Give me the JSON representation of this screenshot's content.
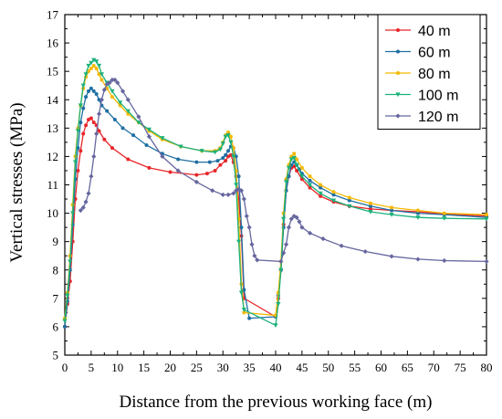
{
  "chart_data": {
    "type": "line",
    "xlabel": "Distance from the previous working face (m)",
    "ylabel": "Vertical stresses (MPa)",
    "xlim": [
      0,
      80
    ],
    "ylim": [
      5,
      17
    ],
    "xticks": [
      0,
      5,
      10,
      15,
      20,
      25,
      30,
      35,
      40,
      45,
      50,
      55,
      60,
      65,
      70,
      75,
      80
    ],
    "yticks": [
      5,
      6,
      7,
      8,
      9,
      10,
      11,
      12,
      13,
      14,
      15,
      16,
      17
    ],
    "grid": false,
    "legend_position": "top-right",
    "series": [
      {
        "name": "40 m",
        "color": "#e8262a",
        "marker": "circle",
        "x": [
          0,
          0.5,
          1,
          1.5,
          2,
          2.5,
          3,
          3.5,
          4,
          4.5,
          5,
          5.5,
          6,
          6.5,
          7.5,
          9,
          12,
          16,
          20,
          25,
          27,
          28.5,
          29.5,
          30.5,
          31,
          31.5,
          32,
          32.5,
          33,
          33.5,
          34,
          40,
          40.5,
          41,
          41.5,
          42,
          42.5,
          43,
          43.5,
          44,
          45,
          46.5,
          48.5,
          51,
          54,
          58,
          62,
          67,
          72,
          80
        ],
        "y": [
          6.0,
          6.8,
          7.6,
          9.0,
          10.5,
          11.5,
          12.2,
          12.8,
          13.1,
          13.3,
          13.35,
          13.2,
          13.1,
          12.9,
          12.6,
          12.3,
          11.9,
          11.6,
          11.45,
          11.35,
          11.4,
          11.5,
          11.7,
          11.85,
          12.0,
          12.05,
          11.8,
          11.3,
          10.5,
          9.2,
          7.0,
          6.35,
          7.0,
          8.0,
          9.6,
          10.8,
          11.3,
          11.6,
          11.65,
          11.5,
          11.2,
          10.9,
          10.6,
          10.4,
          10.25,
          10.15,
          10.1,
          10.05,
          9.98,
          9.9
        ]
      },
      {
        "name": "60 m",
        "color": "#1f6fa3",
        "marker": "circle",
        "x": [
          0,
          0.5,
          1,
          1.5,
          2,
          2.5,
          3,
          3.5,
          4,
          4.5,
          5,
          5.5,
          6,
          6.5,
          7,
          8,
          9.5,
          11,
          13,
          15.5,
          18.5,
          21.5,
          25,
          27.5,
          29,
          30,
          30.5,
          31,
          31.5,
          32,
          32.5,
          33,
          33.5,
          34,
          35,
          40,
          40.5,
          41,
          41.5,
          42,
          42.5,
          43,
          43.5,
          44,
          44.5,
          45,
          46.5,
          48.5,
          51,
          54,
          58,
          62,
          67,
          72,
          80
        ],
        "y": [
          6.0,
          6.9,
          8.0,
          9.6,
          11.2,
          12.3,
          13.2,
          13.7,
          14.1,
          14.3,
          14.4,
          14.3,
          14.2,
          14.0,
          13.8,
          13.6,
          13.3,
          13.0,
          12.75,
          12.4,
          12.1,
          11.9,
          11.8,
          11.8,
          11.85,
          11.95,
          12.05,
          12.2,
          12.35,
          12.3,
          12.0,
          11.3,
          9.5,
          7.3,
          6.3,
          6.35,
          7.1,
          8.0,
          9.5,
          10.8,
          11.3,
          11.7,
          11.8,
          11.7,
          11.55,
          11.4,
          11.15,
          10.9,
          10.65,
          10.45,
          10.25,
          10.1,
          10.0,
          9.95,
          9.85
        ]
      },
      {
        "name": "80 m",
        "color": "#f5b800",
        "marker": "circle",
        "x": [
          0,
          0.5,
          1,
          1.5,
          2,
          2.5,
          3,
          3.5,
          4,
          4.5,
          5,
          5.5,
          6,
          6.5,
          7,
          8,
          9,
          10.5,
          12,
          14,
          16,
          18.5,
          22,
          26,
          28.5,
          29.5,
          30,
          30.5,
          31,
          31.5,
          32,
          32.5,
          33,
          33.5,
          34,
          40,
          40.5,
          41,
          41.5,
          42,
          42.5,
          43,
          43.5,
          44,
          45,
          46.5,
          48.5,
          51,
          54,
          58,
          62,
          67,
          72,
          80
        ],
        "y": [
          6.3,
          7.2,
          8.5,
          10.3,
          12.0,
          13.0,
          13.8,
          14.4,
          14.8,
          15.0,
          15.1,
          15.2,
          15.1,
          14.9,
          14.7,
          14.4,
          14.1,
          13.8,
          13.5,
          13.2,
          12.9,
          12.6,
          12.35,
          12.2,
          12.2,
          12.3,
          12.5,
          12.75,
          12.85,
          12.7,
          12.3,
          11.5,
          9.8,
          7.5,
          6.5,
          6.4,
          7.2,
          8.3,
          10.0,
          11.2,
          11.7,
          12.0,
          12.1,
          11.9,
          11.6,
          11.3,
          11.0,
          10.75,
          10.55,
          10.35,
          10.2,
          10.1,
          10.0,
          9.95
        ]
      },
      {
        "name": "100 m",
        "color": "#1bb27a",
        "marker": "triangle-down",
        "x": [
          0,
          0.5,
          1,
          1.5,
          2,
          2.5,
          3,
          3.5,
          4,
          4.5,
          5,
          5.5,
          6,
          6.5,
          7,
          8,
          9,
          10.5,
          12,
          14,
          16,
          18.5,
          22,
          26,
          28.5,
          29.5,
          30,
          30.5,
          31,
          31.5,
          32,
          32.5,
          33,
          33.5,
          34,
          40,
          40.5,
          41,
          41.5,
          42,
          42.5,
          43,
          43.5,
          44,
          45,
          46.5,
          48.5,
          51,
          54,
          58,
          62,
          67,
          72,
          80
        ],
        "y": [
          6.2,
          7.1,
          8.3,
          10.0,
          11.8,
          12.9,
          13.8,
          14.5,
          14.9,
          15.2,
          15.3,
          15.4,
          15.35,
          15.2,
          14.9,
          14.6,
          14.3,
          13.9,
          13.6,
          13.2,
          12.95,
          12.65,
          12.35,
          12.2,
          12.15,
          12.25,
          12.45,
          12.7,
          12.75,
          12.5,
          12.0,
          11.0,
          9.0,
          7.2,
          6.6,
          6.05,
          6.8,
          8.0,
          9.8,
          11.1,
          11.6,
          11.9,
          11.95,
          11.7,
          11.3,
          11.0,
          10.7,
          10.45,
          10.25,
          10.05,
          9.95,
          9.85,
          9.82,
          9.8
        ]
      },
      {
        "name": "120 m",
        "color": "#66669f",
        "marker": "diamond",
        "x": [
          3,
          3.5,
          4,
          4.5,
          5,
          5.5,
          6,
          6.5,
          7,
          7.5,
          8,
          8.5,
          9,
          9.5,
          10,
          11,
          12,
          14,
          16,
          18.5,
          21.5,
          25,
          28,
          30,
          31,
          32,
          32.5,
          33,
          33.5,
          34,
          34.5,
          35,
          35.5,
          36,
          36.5,
          41,
          41.5,
          42,
          42.5,
          43,
          43.5,
          44,
          44.5,
          45,
          46.5,
          49,
          52.5,
          57,
          62,
          67,
          72,
          80
        ],
        "y": [
          10.1,
          10.2,
          10.4,
          10.7,
          11.3,
          12.0,
          12.8,
          13.5,
          14.0,
          14.35,
          14.55,
          14.6,
          14.7,
          14.7,
          14.6,
          14.3,
          14.0,
          13.4,
          12.7,
          12.0,
          11.5,
          11.1,
          10.8,
          10.65,
          10.65,
          10.7,
          10.8,
          10.85,
          10.8,
          10.5,
          9.9,
          9.5,
          8.9,
          8.5,
          8.35,
          8.3,
          8.6,
          8.9,
          9.5,
          9.8,
          9.9,
          9.85,
          9.7,
          9.5,
          9.3,
          9.1,
          8.85,
          8.65,
          8.48,
          8.38,
          8.33,
          8.3
        ]
      }
    ]
  }
}
